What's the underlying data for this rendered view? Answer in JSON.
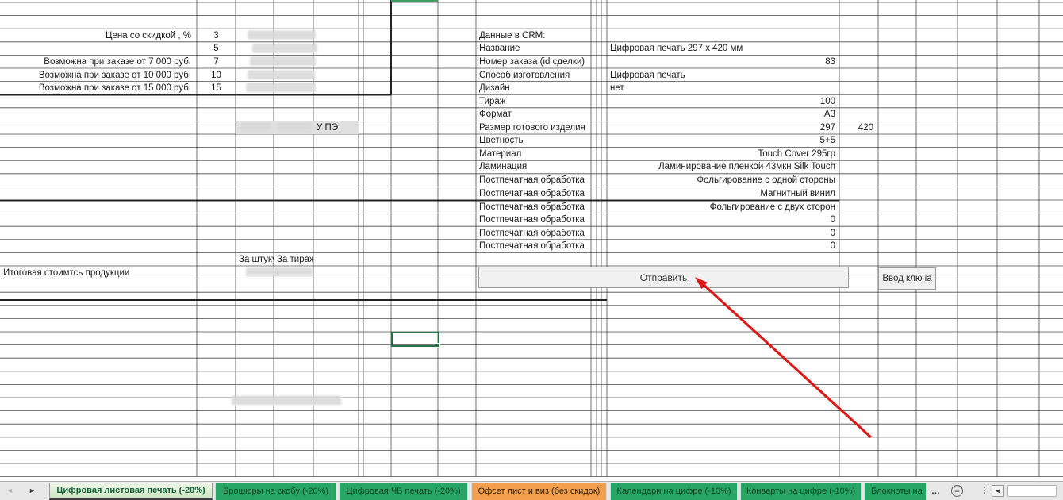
{
  "discount_table": {
    "header_label": "Цена со скидкой , %",
    "rows": [
      {
        "condition": "",
        "percent": "3"
      },
      {
        "condition": "",
        "percent": "5"
      },
      {
        "condition": "Возможна при заказе от 7 000 руб.",
        "percent": "7"
      },
      {
        "condition": "Возможна при заказе от 10 000 руб.",
        "percent": "10"
      },
      {
        "condition": "Возможна при заказе от 15 000 руб.",
        "percent": "15"
      }
    ]
  },
  "upe_label": "У ПЭ",
  "totals": {
    "per_item_header": "За штуку",
    "per_run_header": "За тираж",
    "total_label": "Итоговая стоимтсь продукции"
  },
  "crm": {
    "section_title": "Данные в CRM:",
    "fields": [
      {
        "label": "Название",
        "value": "Цифровая печать 297 х 420 мм"
      },
      {
        "label": "Номер заказа (id сделки)",
        "value": "83"
      },
      {
        "label": "Способ изготовления",
        "value": "Цифровая печать"
      },
      {
        "label": "Дизайн",
        "value": "нет"
      },
      {
        "label": "Тираж",
        "value": "100"
      },
      {
        "label": "Формат",
        "value": "А3"
      },
      {
        "label": "Размер готового изделия",
        "value": "297",
        "extra_value": "420"
      },
      {
        "label": "Цветность",
        "value": "5+5"
      },
      {
        "label": "Материал",
        "value": "Touch Cover 295гр"
      },
      {
        "label": "Ламинация",
        "value": "Ламинирование пленкой 43мкн Silk Touch"
      },
      {
        "label": "Постпечатная обработка",
        "value": "Фольгирование с одной стороны"
      },
      {
        "label": "Постпечатная обработка",
        "value": "Магнитный винил"
      },
      {
        "label": "Постпечатная обработка",
        "value": "Фольгирование  с двух сторон"
      },
      {
        "label": "Постпечатная обработка",
        "value": "0"
      },
      {
        "label": "Постпечатная обработка",
        "value": "0"
      },
      {
        "label": "Постпечатная обработка",
        "value": "0"
      }
    ]
  },
  "buttons": {
    "send": "Отправить",
    "key_entry": "Ввод ключа"
  },
  "sheet_tabs": {
    "tabs": [
      {
        "label": "Цифровая листовая печать (-20%)",
        "active": true
      },
      {
        "label": "Брошюры на скобу (-20%)"
      },
      {
        "label": "Цифровая ЧБ печать (-20%)"
      },
      {
        "label": "Офсет лист и виз (без скидок)"
      },
      {
        "label": "Календари на цифре (-10%)"
      },
      {
        "label": "Конверты на цифре (-10%)"
      },
      {
        "label": "Блокноты на"
      }
    ],
    "overflow_ellipsis": "…"
  },
  "icons": {
    "prev_sheet": "◄",
    "next_sheet": "►",
    "add_sheet": "+",
    "tab_menu_dots": "⋮",
    "scroll_left": "◄"
  },
  "colors": {
    "tab_green": "#27a565",
    "tab_orange": "#f2a04e",
    "active_tab_text": "#17643a",
    "selection_border": "#217346",
    "arrow_red": "#dd1a1a",
    "button_bg": "#f1f1f1",
    "gridline": "#4c4c4c"
  }
}
